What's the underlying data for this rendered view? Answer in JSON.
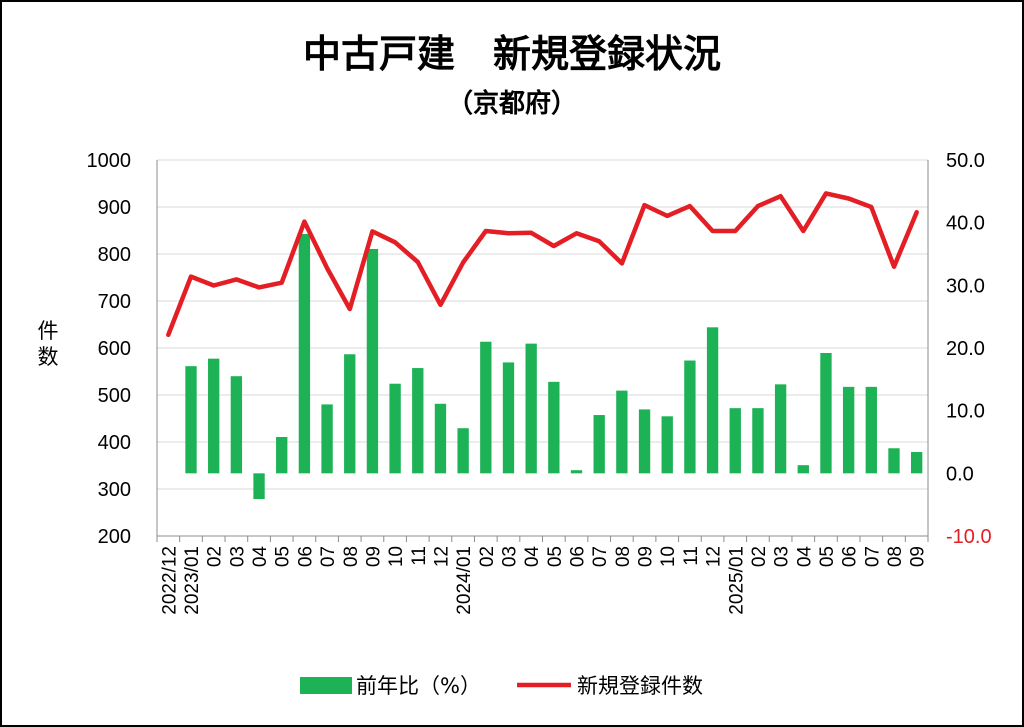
{
  "chart_data": {
    "type": "bar+line",
    "title": "中古戸建　新規登録状況",
    "subtitle": "（京都府）",
    "ylabel_left": "件数",
    "left_axis": {
      "min": 200,
      "max": 1000,
      "step": 100,
      "ticks": [
        "1000",
        "900",
        "800",
        "700",
        "600",
        "500",
        "400",
        "300",
        "200"
      ]
    },
    "right_axis": {
      "min": -10,
      "max": 50,
      "step": 10,
      "ticks": [
        "50.0",
        "40.0",
        "30.0",
        "20.0",
        "10.0",
        "0.0",
        "-10.0"
      ]
    },
    "grid": true,
    "legend_position": "bottom",
    "categories": [
      "2022/12",
      "2023/01",
      "02",
      "03",
      "04",
      "05",
      "06",
      "07",
      "08",
      "09",
      "10",
      "11",
      "12",
      "2024/01",
      "02",
      "03",
      "04",
      "05",
      "06",
      "07",
      "08",
      "09",
      "10",
      "11",
      "12",
      "2025/01",
      "02",
      "03",
      "04",
      "05",
      "06",
      "07",
      "08",
      "09"
    ],
    "series": [
      {
        "name": "前年比（%）",
        "type": "bar",
        "axis": "right",
        "color": "#1db255",
        "values": [
          null,
          17.1,
          18.3,
          15.5,
          -4.1,
          5.8,
          38.2,
          11.0,
          19.0,
          35.8,
          14.3,
          16.8,
          11.1,
          7.2,
          21.0,
          17.7,
          20.7,
          14.6,
          0.5,
          9.3,
          13.2,
          10.2,
          9.1,
          18.0,
          23.3,
          10.4,
          10.4,
          14.2,
          1.3,
          19.2,
          13.8,
          13.8,
          4.0,
          3.4
        ]
      },
      {
        "name": "新規登録件数",
        "type": "line",
        "axis": "left",
        "color": "#e31e24",
        "values": [
          628,
          752,
          733,
          746,
          729,
          739,
          869,
          770,
          683,
          848,
          825,
          783,
          692,
          782,
          849,
          844,
          845,
          817,
          844,
          827,
          780,
          904,
          881,
          902,
          849,
          849,
          902,
          923,
          849,
          929,
          918,
          900,
          773,
          889
        ]
      }
    ]
  }
}
